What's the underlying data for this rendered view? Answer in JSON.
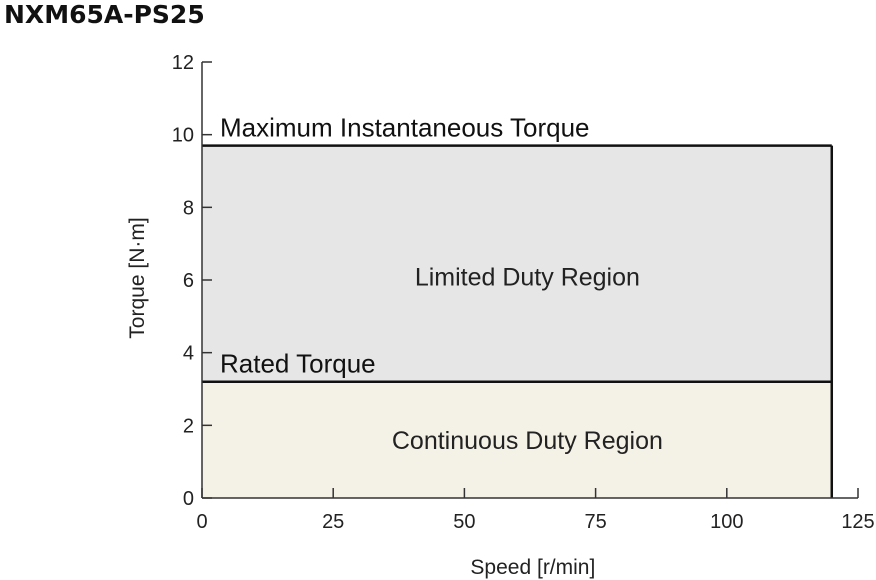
{
  "chart_data": {
    "type": "area",
    "title": "NXM65A-PS25",
    "xlabel": "Speed [r/min]",
    "ylabel": "Torque [N·m]",
    "xlim": [
      0,
      125
    ],
    "ylim": [
      0,
      12
    ],
    "xticks": [
      0,
      25,
      50,
      75,
      100,
      125
    ],
    "yticks": [
      0,
      2,
      4,
      6,
      8,
      10,
      12
    ],
    "grid": false,
    "series": [
      {
        "name": "Maximum Instantaneous Torque",
        "x": [
          0,
          120
        ],
        "y": [
          9.7,
          9.7
        ]
      },
      {
        "name": "Rated Torque",
        "x": [
          0,
          120
        ],
        "y": [
          3.2,
          3.2
        ]
      }
    ],
    "regions": [
      {
        "name": "Limited Duty Region",
        "x": [
          0,
          120
        ],
        "y": [
          3.2,
          9.7
        ],
        "color": "#e6e6e6",
        "label_at": [
          62,
          6.1
        ]
      },
      {
        "name": "Continuous Duty Region",
        "x": [
          0,
          120
        ],
        "y": [
          0,
          3.2
        ],
        "color": "#f4f1e6",
        "label_at": [
          62,
          1.6
        ]
      }
    ],
    "colors": {
      "line": "#111111",
      "axis": "#333333"
    }
  }
}
